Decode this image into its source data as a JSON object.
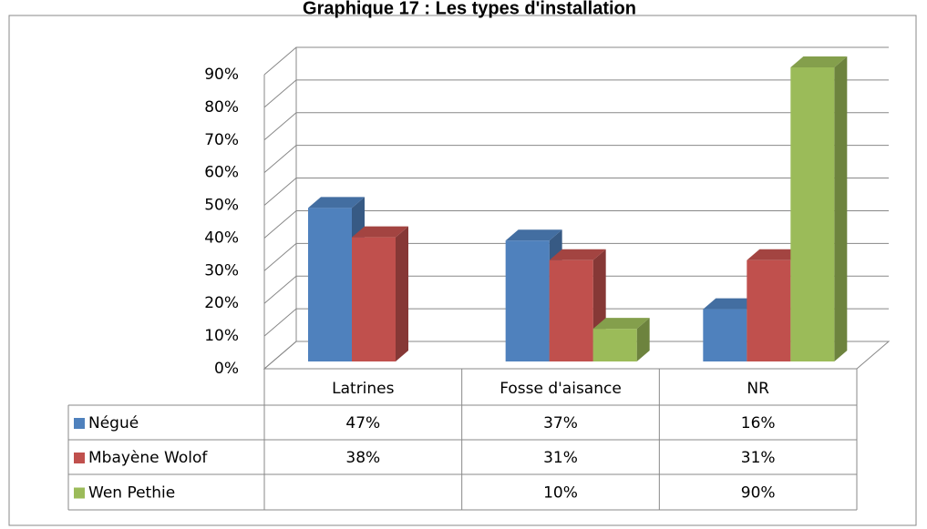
{
  "chart_data": {
    "type": "bar3d",
    "title": "Graphique 17 : Les types d'installation",
    "categories": [
      "Latrines",
      "Fosse d'aisance",
      "NR"
    ],
    "series": [
      {
        "name": "Négué",
        "color": "#4f81bd",
        "values": [
          47,
          37,
          16
        ],
        "value_labels": [
          "47%",
          "37%",
          "16%"
        ]
      },
      {
        "name": "Mbayène Wolof",
        "color": "#c0504d",
        "values": [
          38,
          31,
          31
        ],
        "value_labels": [
          "38%",
          "31%",
          "31%"
        ]
      },
      {
        "name": "Wen Pethie",
        "color": "#9bbb59",
        "values": [
          null,
          10,
          90
        ],
        "value_labels": [
          null,
          "10%",
          "90%"
        ]
      }
    ],
    "ylim": [
      0,
      90
    ],
    "yticks": [
      {
        "value": 0,
        "label": "0%"
      },
      {
        "value": 10,
        "label": "10%"
      },
      {
        "value": 20,
        "label": "20%"
      },
      {
        "value": 30,
        "label": "30%"
      },
      {
        "value": 40,
        "label": "40%"
      },
      {
        "value": 50,
        "label": "50%"
      },
      {
        "value": 60,
        "label": "60%"
      },
      {
        "value": 70,
        "label": "70%"
      },
      {
        "value": 80,
        "label": "80%"
      },
      {
        "value": 90,
        "label": "90%"
      }
    ],
    "grid": true,
    "data_table": true
  }
}
